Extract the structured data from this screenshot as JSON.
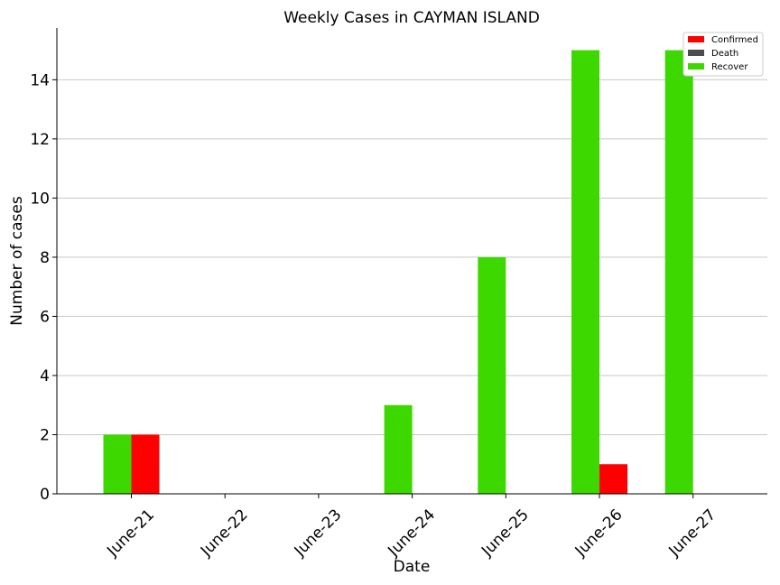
{
  "chart_data": {
    "type": "bar",
    "title": "Weekly Cases in CAYMAN ISLAND",
    "xlabel": "Date",
    "ylabel": "Number of cases",
    "categories": [
      "June-21",
      "June-22",
      "June-23",
      "June-24",
      "June-25",
      "June-26",
      "June-27"
    ],
    "series": [
      {
        "name": "Recover",
        "color": "#3dd800",
        "values": [
          2,
          0,
          0,
          3,
          8,
          15,
          15
        ]
      },
      {
        "name": "Confirmed",
        "color": "#ff0000",
        "values": [
          2,
          0,
          0,
          0,
          0,
          1,
          0
        ]
      },
      {
        "name": "Death",
        "color": "#4d4d4d",
        "values": [
          0,
          0,
          0,
          0,
          0,
          0,
          0
        ]
      }
    ],
    "legend": {
      "placement": "top-right",
      "order": [
        "Confirmed",
        "Death",
        "Recover"
      ]
    },
    "ylim": [
      0,
      15.75
    ],
    "yticks": [
      0,
      2,
      4,
      6,
      8,
      10,
      12,
      14
    ],
    "ytick_labels": [
      "0",
      "2",
      "4",
      "6",
      "8",
      "10",
      "12",
      "14"
    ],
    "grid": "horizontal"
  }
}
